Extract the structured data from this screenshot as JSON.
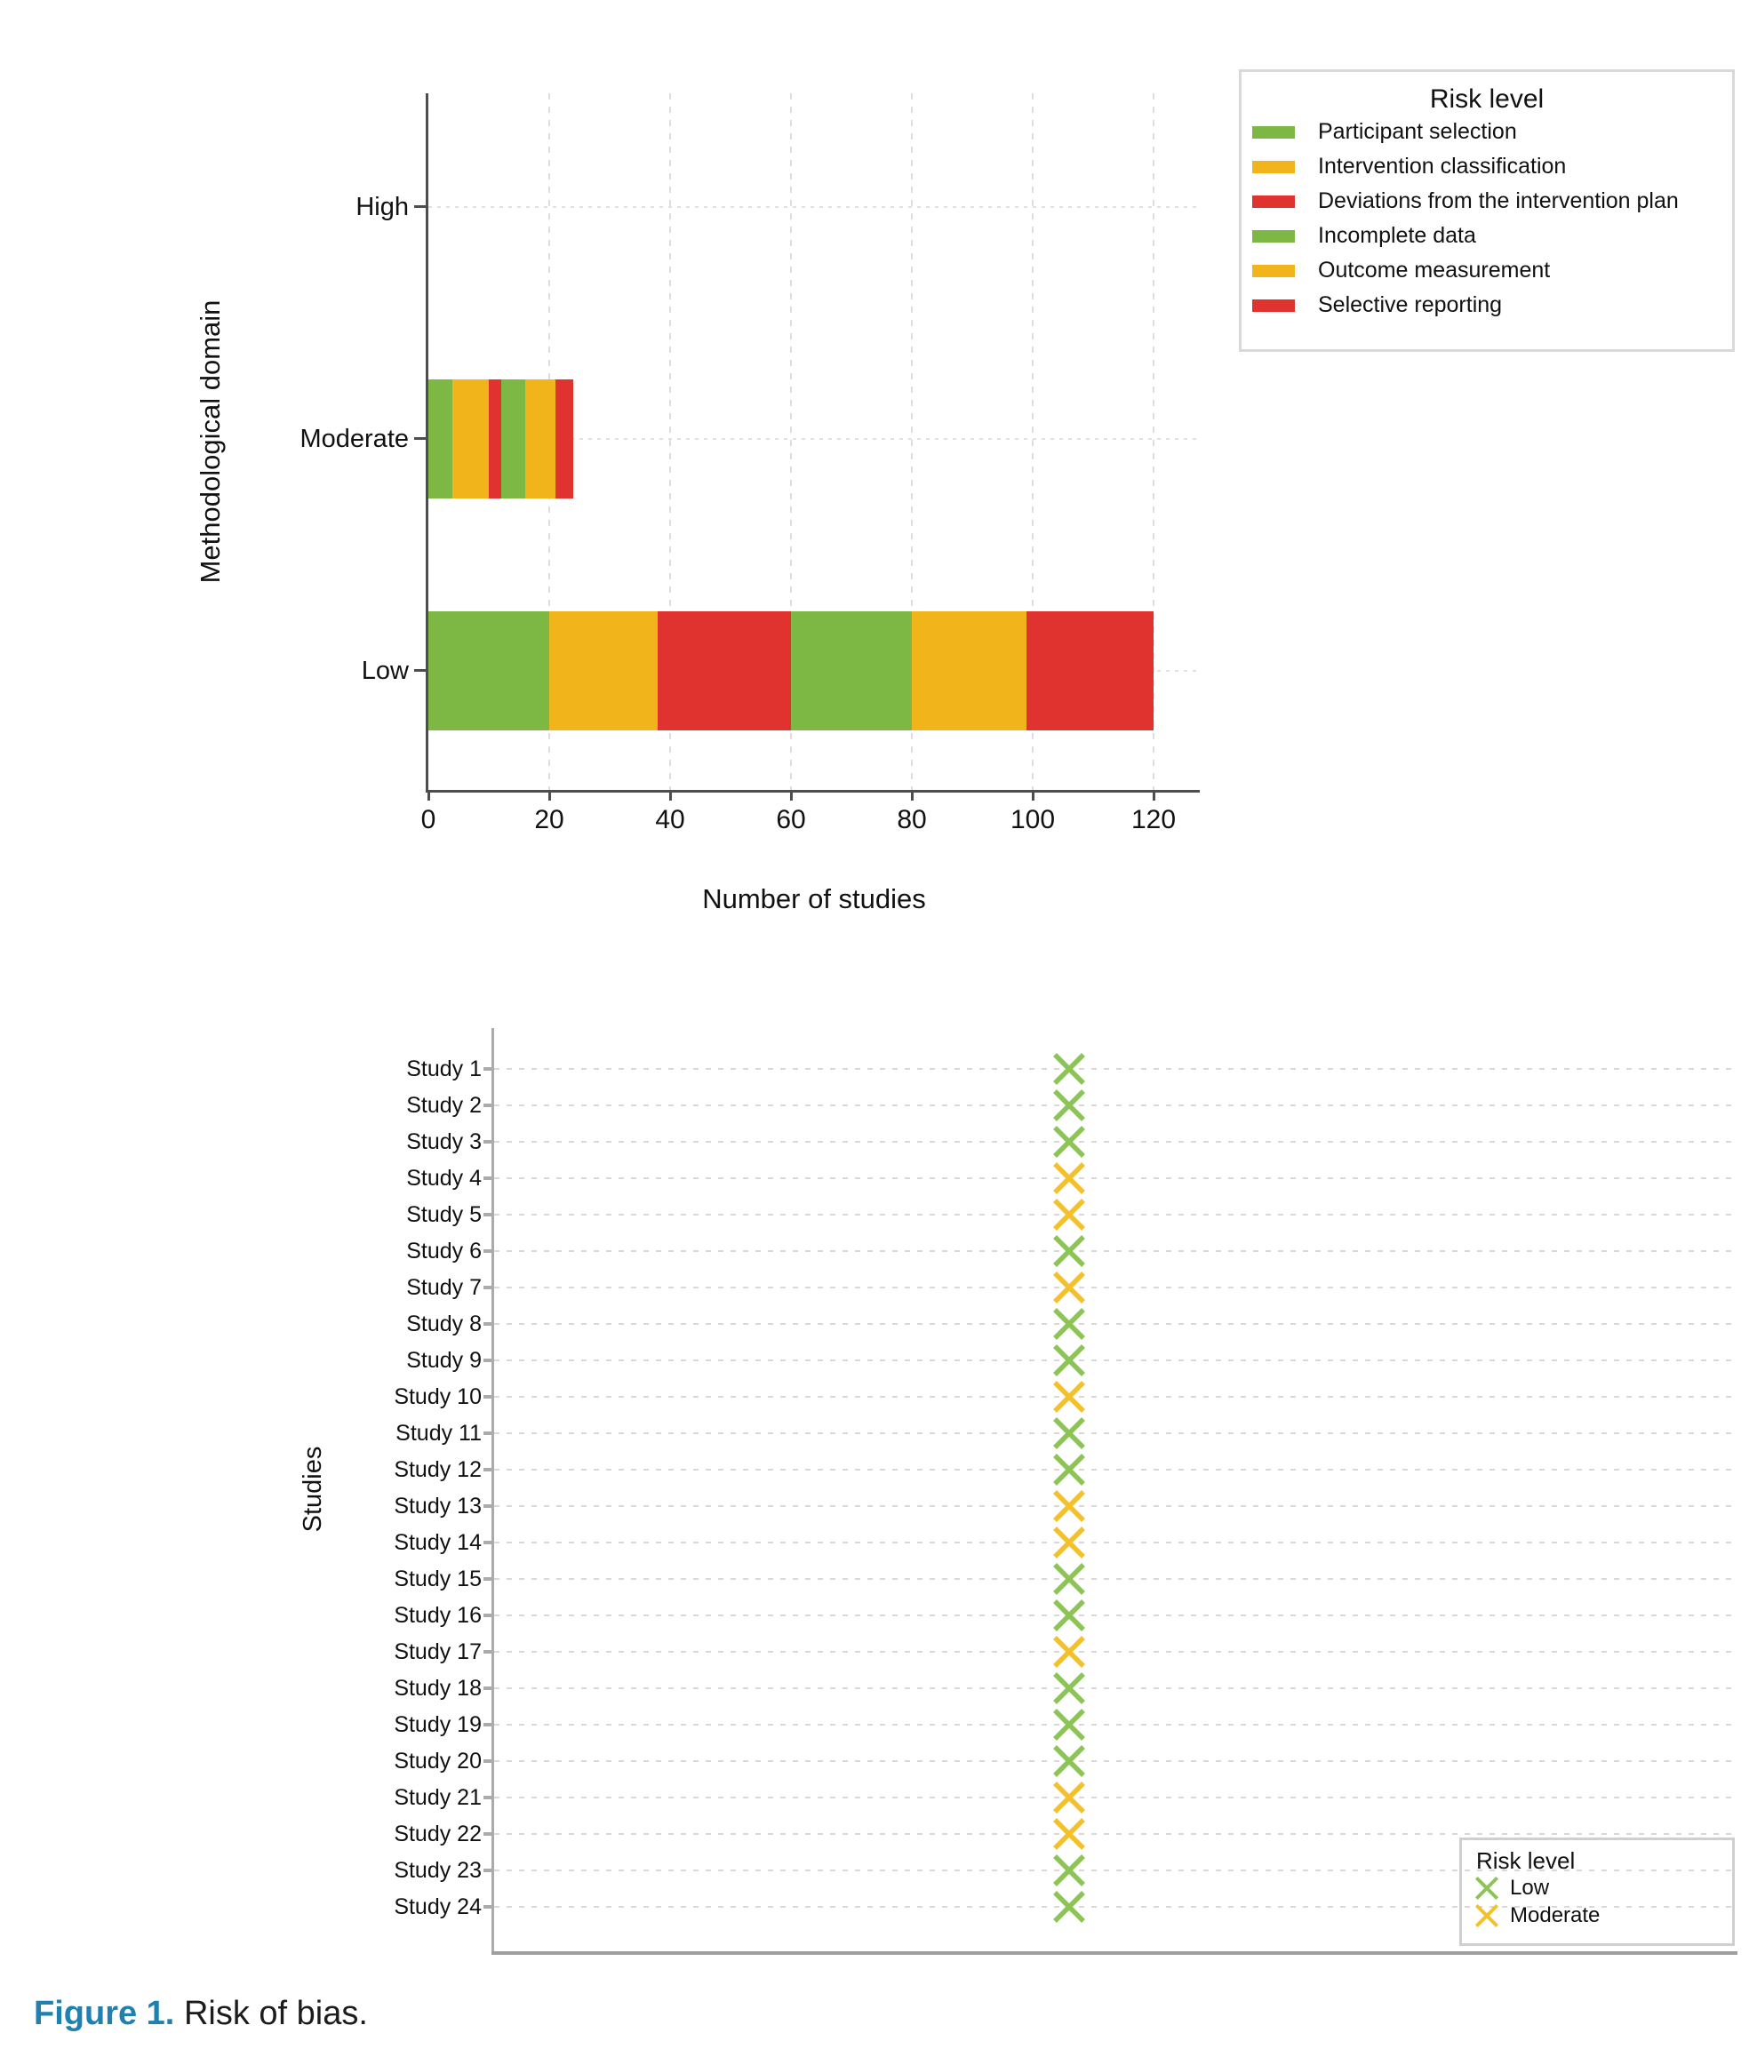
{
  "colors": {
    "green": "#7CB843",
    "amber": "#F1B41B",
    "red": "#E0332F",
    "marker_low": "#8CC455",
    "marker_moderate": "#F3C12C",
    "caption_accent": "#2080B0"
  },
  "chart_data": [
    {
      "type": "bar",
      "orientation": "horizontal",
      "stacked": true,
      "xlabel": "Number of studies",
      "ylabel": "Methodological domain",
      "categories": [
        "High",
        "Moderate",
        "Low"
      ],
      "xticks": [
        0,
        20,
        40,
        60,
        80,
        100,
        120
      ],
      "xlim": [
        0,
        127
      ],
      "grid": true,
      "legend": {
        "title": "Risk level",
        "position": "outside top right"
      },
      "series": [
        {
          "name": "Participant selection",
          "color_key": "green",
          "values": [
            0,
            4,
            20
          ]
        },
        {
          "name": "Intervention classification",
          "color_key": "amber",
          "values": [
            0,
            6,
            18
          ]
        },
        {
          "name": "Deviations from the intervention plan",
          "color_key": "red",
          "values": [
            0,
            2,
            22
          ]
        },
        {
          "name": "Incomplete data",
          "color_key": "green",
          "values": [
            0,
            4,
            20
          ]
        },
        {
          "name": "Outcome measurement",
          "color_key": "amber",
          "values": [
            0,
            5,
            19
          ]
        },
        {
          "name": "Selective reporting",
          "color_key": "red",
          "values": [
            0,
            3,
            21
          ]
        }
      ]
    },
    {
      "type": "scatter",
      "marker": "x",
      "xlabel": "",
      "ylabel": "Studies",
      "legend": {
        "title": "Risk level",
        "position": "inside bottom right"
      },
      "risk_color_keys": {
        "Low": "marker_low",
        "Moderate": "marker_moderate"
      },
      "legend_entries": [
        {
          "label": "Low",
          "risk": "Low"
        },
        {
          "label": "Moderate",
          "risk": "Moderate"
        }
      ],
      "points": [
        {
          "label": "Study 1",
          "risk": "Low"
        },
        {
          "label": "Study 2",
          "risk": "Low"
        },
        {
          "label": "Study 3",
          "risk": "Low"
        },
        {
          "label": "Study 4",
          "risk": "Moderate"
        },
        {
          "label": "Study 5",
          "risk": "Moderate"
        },
        {
          "label": "Study 6",
          "risk": "Low"
        },
        {
          "label": "Study 7",
          "risk": "Moderate"
        },
        {
          "label": "Study 8",
          "risk": "Low"
        },
        {
          "label": "Study 9",
          "risk": "Low"
        },
        {
          "label": "Study 10",
          "risk": "Moderate"
        },
        {
          "label": "Study 11",
          "risk": "Low"
        },
        {
          "label": "Study 12",
          "risk": "Low"
        },
        {
          "label": "Study 13",
          "risk": "Moderate"
        },
        {
          "label": "Study 14",
          "risk": "Moderate"
        },
        {
          "label": "Study 15",
          "risk": "Low"
        },
        {
          "label": "Study 16",
          "risk": "Low"
        },
        {
          "label": "Study 17",
          "risk": "Moderate"
        },
        {
          "label": "Study 18",
          "risk": "Low"
        },
        {
          "label": "Study 19",
          "risk": "Low"
        },
        {
          "label": "Study 20",
          "risk": "Low"
        },
        {
          "label": "Study 21",
          "risk": "Moderate"
        },
        {
          "label": "Study 22",
          "risk": "Moderate"
        },
        {
          "label": "Study 23",
          "risk": "Low"
        },
        {
          "label": "Study 24",
          "risk": "Low"
        }
      ]
    }
  ],
  "caption": {
    "label": "Figure 1.",
    "text": "Risk of bias."
  }
}
